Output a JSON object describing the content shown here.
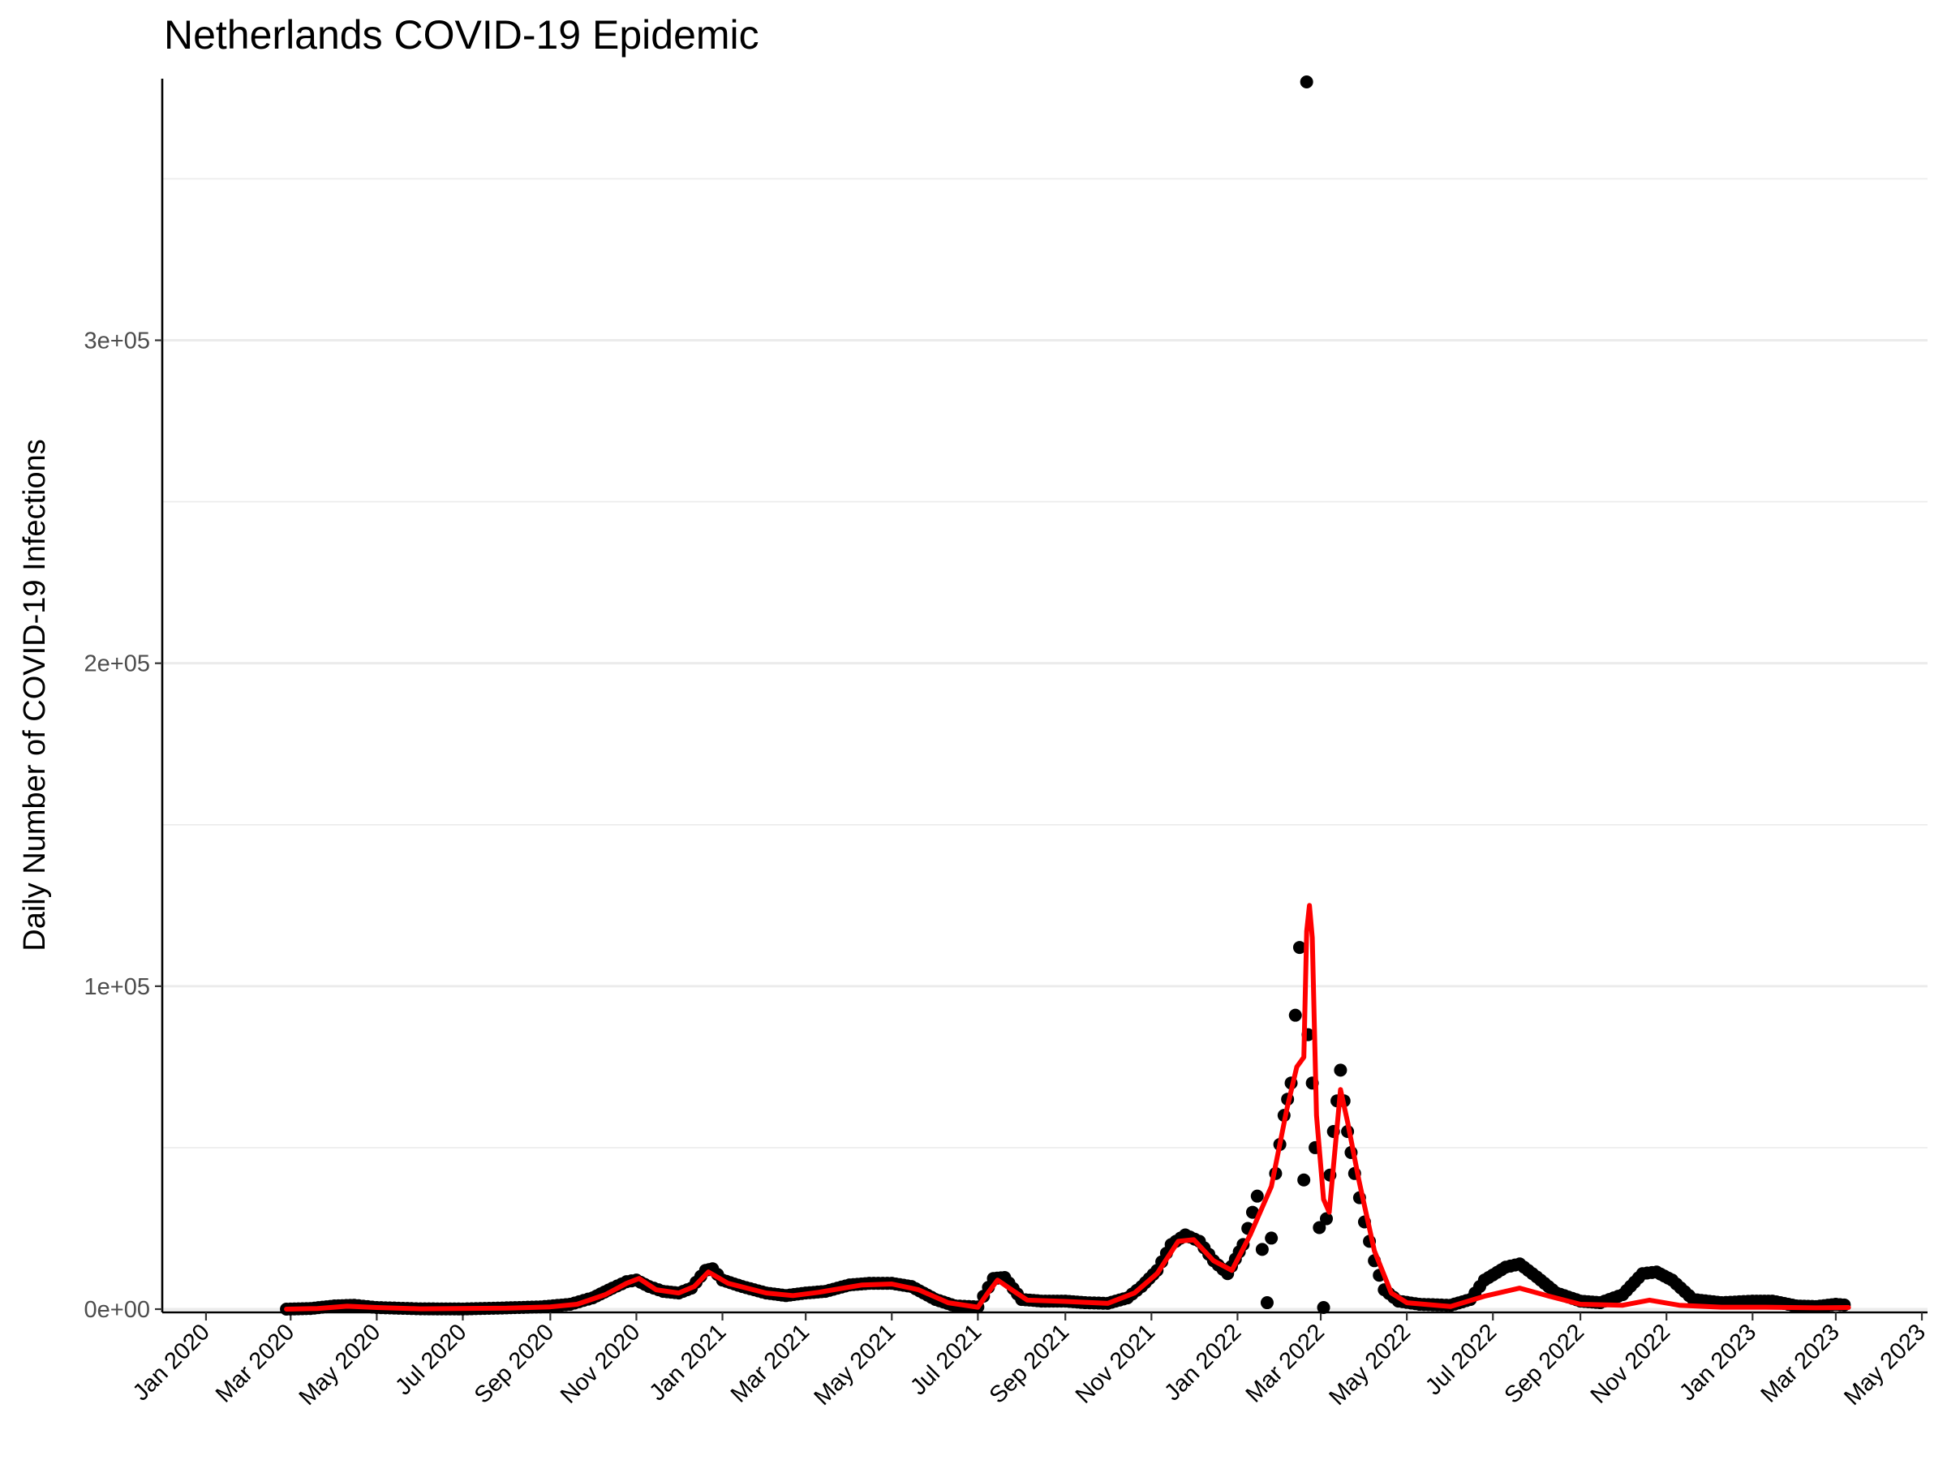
{
  "chart_data": {
    "type": "scatter",
    "title": "Netherlands COVID-19 Epidemic",
    "xlabel": "",
    "ylabel": "Daily Number of COVID-19 Infections",
    "xlim": [
      "2019-12-01",
      "2023-05-05"
    ],
    "ylim": [
      -1000,
      381000
    ],
    "y_ticks": [
      0,
      100000,
      200000,
      300000
    ],
    "y_tick_labels": [
      "0e+00",
      "1e+05",
      "2e+05",
      "3e+05"
    ],
    "y_minor_ticks": [
      50000,
      150000,
      250000,
      350000
    ],
    "x_ticks": [
      "2020-01-01",
      "2020-03-01",
      "2020-05-01",
      "2020-07-01",
      "2020-09-01",
      "2020-11-01",
      "2021-01-01",
      "2021-03-01",
      "2021-05-01",
      "2021-07-01",
      "2021-09-01",
      "2021-11-01",
      "2022-01-01",
      "2022-03-01",
      "2022-05-01",
      "2022-07-01",
      "2022-09-01",
      "2022-11-01",
      "2023-01-01",
      "2023-03-01",
      "2023-05-01"
    ],
    "x_tick_labels": [
      "Jan 2020",
      "Mar 2020",
      "May 2020",
      "Jul 2020",
      "Sep 2020",
      "Nov 2020",
      "Jan 2021",
      "Mar 2021",
      "May 2021",
      "Jul 2021",
      "Sep 2021",
      "Nov 2021",
      "Jan 2022",
      "Mar 2022",
      "May 2022",
      "Jul 2022",
      "Sep 2022",
      "Nov 2022",
      "Jan 2023",
      "Mar 2023",
      "May 2023"
    ],
    "grid": "horizontal",
    "series": [
      {
        "kind": "points",
        "color": "#000000",
        "points": [
          [
            "2020-02-27",
            0
          ],
          [
            "2020-03-15",
            200
          ],
          [
            "2020-04-01",
            1000
          ],
          [
            "2020-04-15",
            1200
          ],
          [
            "2020-05-01",
            500
          ],
          [
            "2020-06-01",
            100
          ],
          [
            "2020-07-01",
            50
          ],
          [
            "2020-08-01",
            400
          ],
          [
            "2020-08-25",
            700
          ],
          [
            "2020-09-15",
            1500
          ],
          [
            "2020-10-01",
            3500
          ],
          [
            "2020-10-15",
            6500
          ],
          [
            "2020-10-25",
            8500
          ],
          [
            "2020-11-01",
            9000
          ],
          [
            "2020-11-10",
            7000
          ],
          [
            "2020-11-20",
            5500
          ],
          [
            "2020-12-01",
            5000
          ],
          [
            "2020-12-10",
            6500
          ],
          [
            "2020-12-20",
            12000
          ],
          [
            "2020-12-25",
            12500
          ],
          [
            "2021-01-01",
            9000
          ],
          [
            "2021-01-15",
            7000
          ],
          [
            "2021-02-01",
            5000
          ],
          [
            "2021-02-15",
            4200
          ],
          [
            "2021-03-01",
            5000
          ],
          [
            "2021-03-15",
            5500
          ],
          [
            "2021-04-01",
            7500
          ],
          [
            "2021-04-15",
            8000
          ],
          [
            "2021-05-01",
            8000
          ],
          [
            "2021-05-15",
            7000
          ],
          [
            "2021-06-01",
            3000
          ],
          [
            "2021-06-15",
            1000
          ],
          [
            "2021-07-01",
            700
          ],
          [
            "2021-07-05",
            4000
          ],
          [
            "2021-07-12",
            9500
          ],
          [
            "2021-07-20",
            9800
          ],
          [
            "2021-08-01",
            3000
          ],
          [
            "2021-08-15",
            2500
          ],
          [
            "2021-09-01",
            2500
          ],
          [
            "2021-09-15",
            2000
          ],
          [
            "2021-10-01",
            1800
          ],
          [
            "2021-10-15",
            3500
          ],
          [
            "2021-10-25",
            7000
          ],
          [
            "2021-11-05",
            12000
          ],
          [
            "2021-11-15",
            20000
          ],
          [
            "2021-11-25",
            23000
          ],
          [
            "2021-12-05",
            21000
          ],
          [
            "2021-12-15",
            15000
          ],
          [
            "2021-12-25",
            11000
          ],
          [
            "2022-01-05",
            20000
          ],
          [
            "2022-01-15",
            35000
          ],
          [
            "2022-01-22",
            2000
          ],
          [
            "2022-01-28",
            42000
          ],
          [
            "2022-02-03",
            60000
          ],
          [
            "2022-02-08",
            70000
          ],
          [
            "2022-02-14",
            112000
          ],
          [
            "2022-02-17",
            40000
          ],
          [
            "2022-02-20",
            85000
          ],
          [
            "2022-02-23",
            70000
          ],
          [
            "2022-02-25",
            50000
          ],
          [
            "2022-03-03",
            500
          ],
          [
            "2022-03-05",
            28000
          ],
          [
            "2022-03-10",
            55000
          ],
          [
            "2022-03-15",
            74000
          ],
          [
            "2022-03-20",
            55000
          ],
          [
            "2022-03-25",
            42000
          ],
          [
            "2022-04-01",
            27000
          ],
          [
            "2022-04-08",
            15000
          ],
          [
            "2022-04-15",
            6000
          ],
          [
            "2022-04-25",
            2500
          ],
          [
            "2022-05-10",
            1500
          ],
          [
            "2022-06-01",
            1200
          ],
          [
            "2022-06-15",
            3000
          ],
          [
            "2022-06-25",
            9000
          ],
          [
            "2022-07-10",
            13000
          ],
          [
            "2022-07-20",
            14000
          ],
          [
            "2022-08-01",
            10000
          ],
          [
            "2022-08-15",
            5000
          ],
          [
            "2022-09-01",
            2500
          ],
          [
            "2022-09-15",
            2000
          ],
          [
            "2022-10-01",
            4500
          ],
          [
            "2022-10-15",
            11000
          ],
          [
            "2022-10-25",
            11500
          ],
          [
            "2022-11-05",
            9000
          ],
          [
            "2022-11-20",
            3000
          ],
          [
            "2022-12-10",
            2000
          ],
          [
            "2023-01-01",
            2500
          ],
          [
            "2023-01-15",
            2500
          ],
          [
            "2023-02-01",
            1000
          ],
          [
            "2023-02-15",
            800
          ],
          [
            "2023-03-01",
            1500
          ],
          [
            "2023-03-10",
            1200
          ],
          [
            "2022-02-19",
            380000
          ]
        ]
      },
      {
        "kind": "line",
        "color": "#ff0000",
        "points": [
          [
            "2020-02-27",
            0
          ],
          [
            "2020-03-20",
            200
          ],
          [
            "2020-04-10",
            900
          ],
          [
            "2020-05-01",
            500
          ],
          [
            "2020-06-01",
            100
          ],
          [
            "2020-08-01",
            300
          ],
          [
            "2020-09-01",
            700
          ],
          [
            "2020-09-20",
            1500
          ],
          [
            "2020-10-10",
            4500
          ],
          [
            "2020-10-25",
            8000
          ],
          [
            "2020-11-03",
            9500
          ],
          [
            "2020-11-15",
            6000
          ],
          [
            "2020-12-01",
            5000
          ],
          [
            "2020-12-12",
            7000
          ],
          [
            "2020-12-22",
            11500
          ],
          [
            "2021-01-05",
            8000
          ],
          [
            "2021-02-01",
            5000
          ],
          [
            "2021-02-20",
            4200
          ],
          [
            "2021-03-10",
            5200
          ],
          [
            "2021-04-10",
            7500
          ],
          [
            "2021-05-01",
            7800
          ],
          [
            "2021-05-20",
            6000
          ],
          [
            "2021-06-10",
            2000
          ],
          [
            "2021-07-01",
            600
          ],
          [
            "2021-07-08",
            5000
          ],
          [
            "2021-07-15",
            9000
          ],
          [
            "2021-07-25",
            6000
          ],
          [
            "2021-08-05",
            2800
          ],
          [
            "2021-09-01",
            2400
          ],
          [
            "2021-10-01",
            1800
          ],
          [
            "2021-10-20",
            5000
          ],
          [
            "2021-11-05",
            11000
          ],
          [
            "2021-11-20",
            21000
          ],
          [
            "2021-12-01",
            21500
          ],
          [
            "2021-12-15",
            15000
          ],
          [
            "2021-12-28",
            12000
          ],
          [
            "2022-01-10",
            23000
          ],
          [
            "2022-01-25",
            38000
          ],
          [
            "2022-02-05",
            62000
          ],
          [
            "2022-02-12",
            75000
          ],
          [
            "2022-02-17",
            78000
          ],
          [
            "2022-02-19",
            117000
          ],
          [
            "2022-02-21",
            125000
          ],
          [
            "2022-02-23",
            115000
          ],
          [
            "2022-02-26",
            60000
          ],
          [
            "2022-03-03",
            34000
          ],
          [
            "2022-03-07",
            30000
          ],
          [
            "2022-03-15",
            68000
          ],
          [
            "2022-03-20",
            58000
          ],
          [
            "2022-03-28",
            40000
          ],
          [
            "2022-04-08",
            18000
          ],
          [
            "2022-04-20",
            5000
          ],
          [
            "2022-05-01",
            2000
          ],
          [
            "2022-06-01",
            800
          ],
          [
            "2022-06-25",
            4000
          ],
          [
            "2022-07-20",
            6500
          ],
          [
            "2022-08-10",
            4000
          ],
          [
            "2022-09-01",
            1500
          ],
          [
            "2022-10-01",
            1200
          ],
          [
            "2022-10-20",
            2800
          ],
          [
            "2022-11-10",
            1200
          ],
          [
            "2022-12-10",
            600
          ],
          [
            "2023-01-10",
            600
          ],
          [
            "2023-02-15",
            400
          ],
          [
            "2023-03-10",
            500
          ]
        ]
      }
    ]
  }
}
